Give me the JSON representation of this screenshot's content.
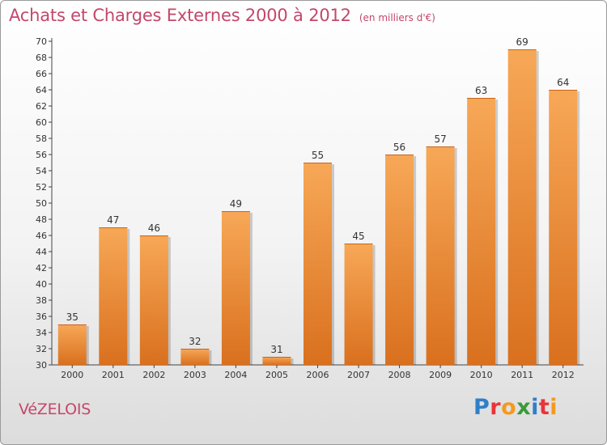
{
  "header": {
    "title": "Achats et Charges Externes 2000 à 2012",
    "unit": "(en milliers d'€)"
  },
  "footer": {
    "place": "VéZELOIS",
    "logo": "Proxiti",
    "logo_colors": [
      "#2f7fc9",
      "#e8343a",
      "#f39a1e",
      "#3a9a3a",
      "#2f7fc9",
      "#e8343a",
      "#f39a1e"
    ]
  },
  "chart_data": {
    "type": "bar",
    "categories": [
      "2000",
      "2001",
      "2002",
      "2003",
      "2004",
      "2005",
      "2006",
      "2007",
      "2008",
      "2009",
      "2010",
      "2011",
      "2012"
    ],
    "values": [
      35,
      47,
      46,
      32,
      49,
      31,
      55,
      45,
      56,
      57,
      63,
      69,
      64
    ],
    "ylim": [
      30,
      70
    ],
    "ytick_step": 2,
    "grid": false,
    "bar_color_top": "#f7a857",
    "bar_color_bottom": "#d9701e"
  }
}
